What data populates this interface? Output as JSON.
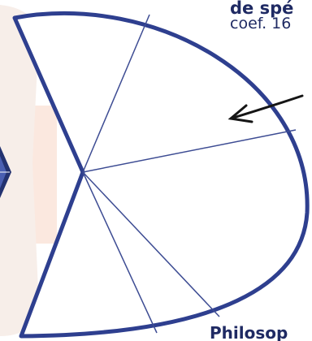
{
  "labels": {
    "top_bold": "de spé",
    "top_plain": "coef. 16",
    "bottom_bold": "Philosop"
  },
  "colors": {
    "outline": "#2e3f8f",
    "divider": "#3d4c93",
    "fill": "#ffffff",
    "glow_outer": "#f6d9cd",
    "glow_inner": "#fff0e8",
    "side_emblem": "#233270",
    "arrow": "#151515"
  },
  "icons": {
    "pointer": "arrow-icon",
    "side_emblem": "diamond-emblem-icon"
  }
}
